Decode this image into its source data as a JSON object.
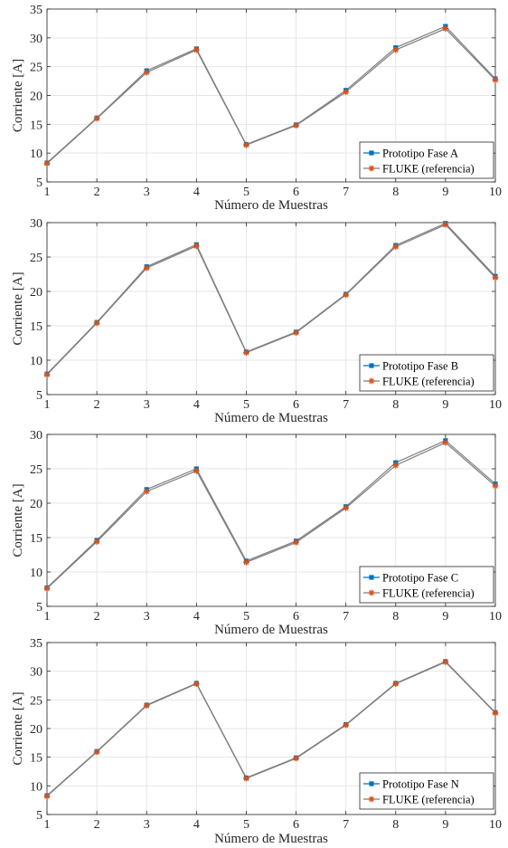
{
  "colors": {
    "series_a": "#0072BD",
    "series_b": "#D95319",
    "line": "#7f7f7f",
    "grid": "#e6e6e6",
    "axis": "#262626"
  },
  "chart_data": [
    {
      "type": "line",
      "xlabel": "Número de Muestras",
      "ylabel": "Corriente [A]",
      "x": [
        1,
        2,
        3,
        4,
        5,
        6,
        7,
        8,
        9,
        10
      ],
      "xticks": [
        "1",
        "2",
        "3",
        "4",
        "5",
        "6",
        "7",
        "8",
        "9",
        "10"
      ],
      "yticks": [
        "5",
        "10",
        "15",
        "20",
        "25",
        "30",
        "35"
      ],
      "xlim": [
        1,
        10
      ],
      "ylim": [
        5,
        35
      ],
      "grid": true,
      "legend_position": "bottom-right",
      "series": [
        {
          "name": "Prototipo Fase A",
          "marker": "square-dot",
          "values": [
            8.3,
            16.1,
            24.3,
            28.1,
            11.5,
            14.9,
            20.9,
            28.3,
            32.0,
            22.9
          ]
        },
        {
          "name": "FLUKE (referencia)",
          "marker": "asterisk",
          "values": [
            8.2,
            16.0,
            24.0,
            27.9,
            11.4,
            14.8,
            20.6,
            27.9,
            31.6,
            22.7
          ]
        }
      ]
    },
    {
      "type": "line",
      "xlabel": "Número de Muestras",
      "ylabel": "Corriente [A]",
      "x": [
        1,
        2,
        3,
        4,
        5,
        6,
        7,
        8,
        9,
        10
      ],
      "xticks": [
        "1",
        "2",
        "3",
        "4",
        "5",
        "6",
        "7",
        "8",
        "9",
        "10"
      ],
      "yticks": [
        "5",
        "10",
        "15",
        "20",
        "25",
        "30"
      ],
      "xlim": [
        1,
        10
      ],
      "ylim": [
        5,
        30
      ],
      "grid": true,
      "legend_position": "bottom-right",
      "series": [
        {
          "name": "Prototipo Fase B",
          "marker": "square-dot",
          "values": [
            8.0,
            15.5,
            23.6,
            26.8,
            11.2,
            14.1,
            19.6,
            26.7,
            29.9,
            22.2
          ]
        },
        {
          "name": "FLUKE (referencia)",
          "marker": "asterisk",
          "values": [
            7.9,
            15.4,
            23.4,
            26.6,
            11.1,
            14.0,
            19.5,
            26.5,
            29.7,
            22.0
          ]
        }
      ]
    },
    {
      "type": "line",
      "xlabel": "Número de Muestras",
      "ylabel": "Corriente [A]",
      "x": [
        1,
        2,
        3,
        4,
        5,
        6,
        7,
        8,
        9,
        10
      ],
      "xticks": [
        "1",
        "2",
        "3",
        "4",
        "5",
        "6",
        "7",
        "8",
        "9",
        "10"
      ],
      "yticks": [
        "5",
        "10",
        "15",
        "20",
        "25",
        "30"
      ],
      "xlim": [
        1,
        10
      ],
      "ylim": [
        5,
        30
      ],
      "grid": true,
      "legend_position": "bottom-right",
      "series": [
        {
          "name": "Prototipo Fase C",
          "marker": "square-dot",
          "values": [
            7.7,
            14.6,
            22.0,
            25.0,
            11.6,
            14.5,
            19.5,
            25.9,
            29.1,
            22.8
          ]
        },
        {
          "name": "FLUKE (referencia)",
          "marker": "asterisk",
          "values": [
            7.6,
            14.4,
            21.7,
            24.7,
            11.4,
            14.3,
            19.3,
            25.5,
            28.8,
            22.5
          ]
        }
      ]
    },
    {
      "type": "line",
      "xlabel": "Número de Muestras",
      "ylabel": "Corriente [A]",
      "x": [
        1,
        2,
        3,
        4,
        5,
        6,
        7,
        8,
        9,
        10
      ],
      "xticks": [
        "1",
        "2",
        "3",
        "4",
        "5",
        "6",
        "7",
        "8",
        "9",
        "10"
      ],
      "yticks": [
        "5",
        "10",
        "15",
        "20",
        "25",
        "30",
        "35"
      ],
      "xlim": [
        1,
        10
      ],
      "ylim": [
        5,
        35
      ],
      "grid": true,
      "legend_position": "bottom-right",
      "series": [
        {
          "name": "Prototipo Fase N",
          "marker": "square-dot",
          "values": [
            8.3,
            16.0,
            24.1,
            27.9,
            11.4,
            14.9,
            20.7,
            27.9,
            31.7,
            22.8
          ]
        },
        {
          "name": "FLUKE (referencia)",
          "marker": "asterisk",
          "values": [
            8.2,
            15.9,
            24.0,
            27.8,
            11.3,
            14.8,
            20.6,
            27.8,
            31.6,
            22.7
          ]
        }
      ]
    }
  ]
}
